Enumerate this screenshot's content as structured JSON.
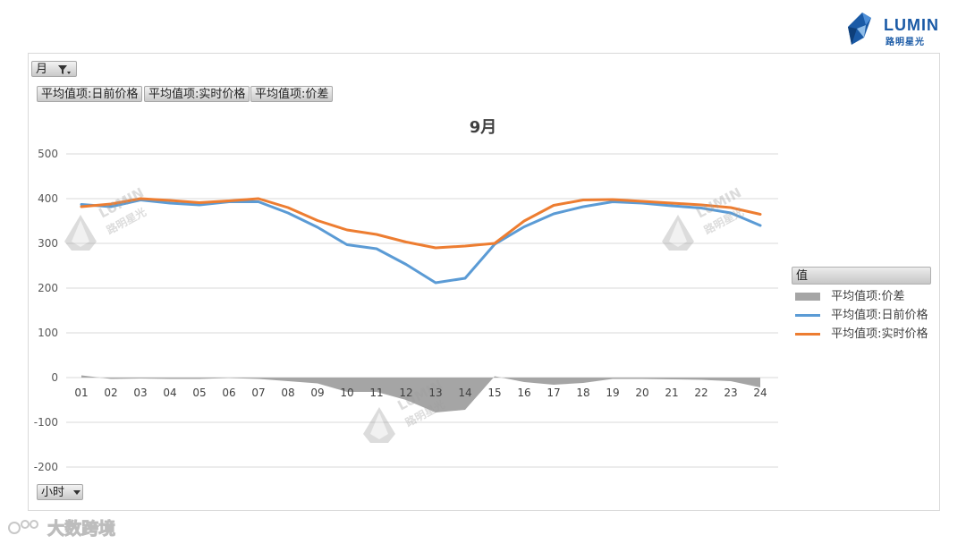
{
  "brand": {
    "name": "LUMIN",
    "sub": "路明星光",
    "primary_color": "#1a5aa6"
  },
  "controls": {
    "month_filter": "月",
    "filter_icon": "filter-icon",
    "value_buttons": [
      "平均值项:日前价格",
      "平均值项:实时价格",
      "平均值项:价差"
    ],
    "hour_filter": "小时",
    "dropdown_icon": "dropdown-arrow-icon"
  },
  "legend": {
    "header": "值"
  },
  "watermark": {
    "source": "大数跨境"
  },
  "chart_data": {
    "type": "line",
    "title": "9月",
    "xlabel": "",
    "ylabel": "",
    "categories": [
      "01",
      "02",
      "03",
      "04",
      "05",
      "06",
      "07",
      "08",
      "09",
      "10",
      "11",
      "12",
      "13",
      "14",
      "15",
      "16",
      "17",
      "18",
      "19",
      "20",
      "21",
      "22",
      "23",
      "24"
    ],
    "ylim": [
      -200,
      500
    ],
    "yticks": [
      "-200",
      "-100",
      "0",
      "100",
      "200",
      "300",
      "400",
      "500"
    ],
    "grid": true,
    "legend_position": "right",
    "series": [
      {
        "name": "平均值项:价差",
        "kind": "area",
        "color": "#a5a5a5",
        "values": [
          5,
          -3,
          -2,
          -3,
          -3,
          -1,
          -3,
          -8,
          -13,
          -32,
          -32,
          -50,
          -78,
          -72,
          3,
          -10,
          -16,
          -12,
          -3,
          -3,
          -4,
          -5,
          -8,
          -22
        ]
      },
      {
        "name": "平均值项:日前价格",
        "kind": "line",
        "color": "#5b9bd5",
        "values": [
          387,
          382,
          397,
          390,
          386,
          393,
          393,
          368,
          336,
          297,
          288,
          253,
          212,
          222,
          298,
          337,
          366,
          382,
          393,
          390,
          384,
          379,
          368,
          340
        ]
      },
      {
        "name": "平均值项:实时价格",
        "kind": "line",
        "color": "#ed7d31",
        "values": [
          382,
          388,
          400,
          396,
          391,
          395,
          400,
          380,
          351,
          330,
          320,
          303,
          290,
          294,
          300,
          350,
          385,
          397,
          398,
          394,
          390,
          386,
          380,
          365
        ]
      }
    ]
  }
}
